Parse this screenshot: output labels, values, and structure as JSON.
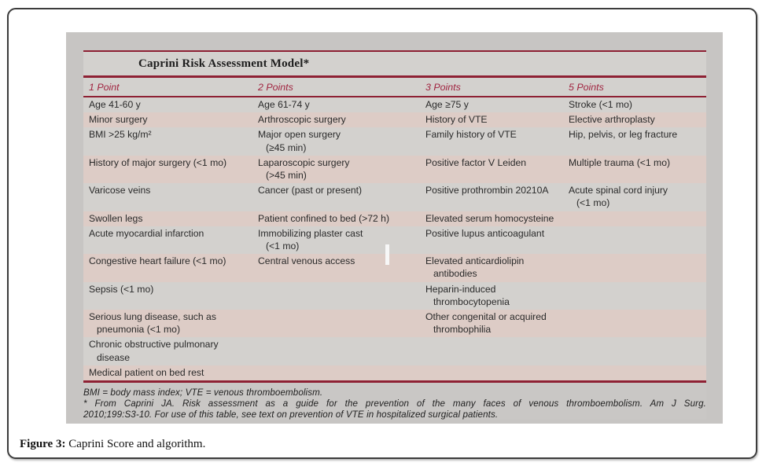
{
  "figure": {
    "caption_label": "Figure 3:",
    "caption_text": " Caprini Score and algorithm."
  },
  "table": {
    "title": "Caprini Risk Assessment Model*",
    "headers": [
      "1 Point",
      "2 Points",
      "3 Points",
      "5 Points"
    ],
    "rows": [
      {
        "shaded": false,
        "cells": [
          [
            "Age 41-60 y"
          ],
          [
            "Age 61-74 y"
          ],
          [
            "Age ≥75 y"
          ],
          [
            "Stroke (<1 mo)"
          ]
        ]
      },
      {
        "shaded": true,
        "cells": [
          [
            "Minor surgery"
          ],
          [
            "Arthroscopic surgery"
          ],
          [
            "History of VTE"
          ],
          [
            "Elective arthroplasty"
          ]
        ]
      },
      {
        "shaded": false,
        "cells": [
          [
            "BMI >25 kg/m²"
          ],
          [
            "Major open surgery",
            "(≥45 min)"
          ],
          [
            "Family history of VTE"
          ],
          [
            "Hip, pelvis, or leg fracture"
          ]
        ]
      },
      {
        "shaded": true,
        "cells": [
          [
            "History of major surgery (<1 mo)"
          ],
          [
            "Laparoscopic surgery",
            "(>45 min)"
          ],
          [
            "Positive factor V Leiden"
          ],
          [
            "Multiple trauma (<1 mo)"
          ]
        ]
      },
      {
        "shaded": false,
        "cells": [
          [
            "Varicose veins"
          ],
          [
            "Cancer (past or present)"
          ],
          [
            "Positive prothrombin 20210A"
          ],
          [
            "Acute spinal cord injury",
            "(<1 mo)"
          ]
        ]
      },
      {
        "shaded": true,
        "cells": [
          [
            "Swollen legs"
          ],
          [
            "Patient confined to bed (>72 h)"
          ],
          [
            "Elevated serum homocysteine"
          ],
          []
        ]
      },
      {
        "shaded": false,
        "cells": [
          [
            "Acute myocardial infarction"
          ],
          [
            "Immobilizing plaster cast",
            "(<1 mo)"
          ],
          [
            "Positive lupus anticoagulant"
          ],
          []
        ]
      },
      {
        "shaded": true,
        "cells": [
          [
            "Congestive heart failure (<1 mo)"
          ],
          [
            "Central venous access"
          ],
          [
            "Elevated anticardiolipin",
            "antibodies"
          ],
          []
        ]
      },
      {
        "shaded": false,
        "cells": [
          [
            "Sepsis (<1 mo)"
          ],
          [],
          [
            "Heparin-induced",
            "thrombocytopenia"
          ],
          []
        ]
      },
      {
        "shaded": true,
        "cells": [
          [
            "Serious lung disease, such as",
            "pneumonia (<1 mo)"
          ],
          [],
          [
            "Other congenital or acquired",
            "thrombophilia"
          ],
          []
        ]
      },
      {
        "shaded": false,
        "cells": [
          [
            "Chronic obstructive pulmonary",
            "disease"
          ],
          [],
          [],
          []
        ]
      },
      {
        "shaded": true,
        "cells": [
          [
            "Medical patient on bed rest"
          ],
          [],
          [],
          []
        ]
      }
    ],
    "footnotes": [
      "BMI = body mass index; VTE = venous thromboembolism.",
      "* From Caprini JA. Risk assessment as a guide for the prevention of the many faces of venous thromboembolism. Am J Surg.",
      "2010;199:S3-10. For use of this table, see text on prevention of VTE in hospitalized surgical patients."
    ],
    "colors": {
      "rule_red": "#8e2134",
      "header_red": "#a02440",
      "shaded_row": "#ddccc6",
      "table_bg": "#d3d1ce",
      "image_bg": "#c7c5c3"
    }
  }
}
